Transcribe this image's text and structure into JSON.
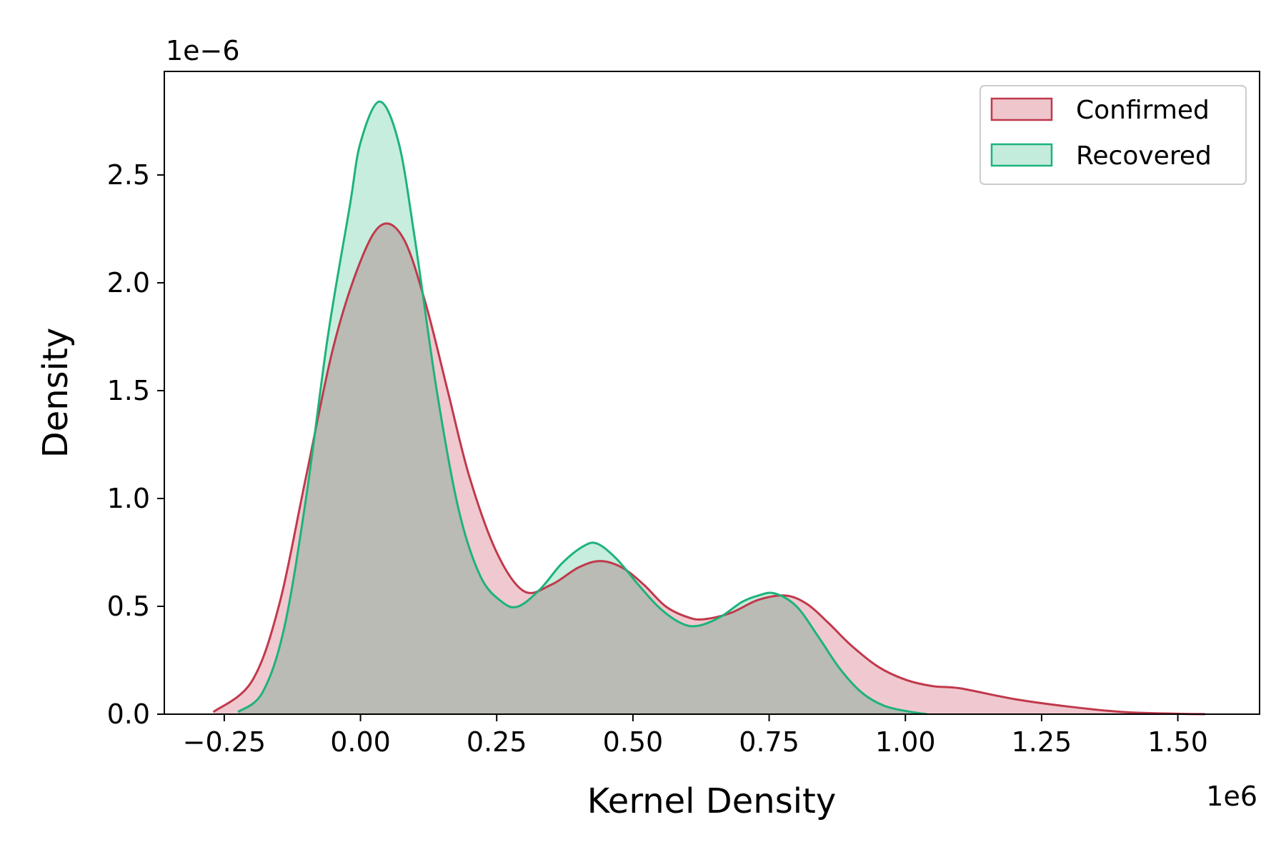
{
  "chart_data": {
    "type": "area",
    "xlabel": "Kernel Density",
    "ylabel": "Density",
    "x_offset_label": "1e6",
    "y_offset_label": "1e−6",
    "xlim": [
      -0.36,
      1.65
    ],
    "ylim": [
      0,
      2.98
    ],
    "x_ticks": [
      -0.25,
      0.0,
      0.25,
      0.5,
      0.75,
      1.0,
      1.25,
      1.5
    ],
    "x_tick_labels": [
      "−0.25",
      "0.00",
      "0.25",
      "0.50",
      "0.75",
      "1.00",
      "1.25",
      "1.50"
    ],
    "y_ticks": [
      0.0,
      0.5,
      1.0,
      1.5,
      2.0,
      2.5
    ],
    "y_tick_labels": [
      "0.0",
      "0.5",
      "1.0",
      "1.5",
      "2.0",
      "2.5"
    ],
    "grid": false,
    "legend": "top-right",
    "series": [
      {
        "name": "Confirmed",
        "color": "#c0394b",
        "fill": "#eec6cc",
        "x": [
          -0.27,
          -0.2,
          -0.15,
          -0.1,
          -0.05,
          0.0,
          0.04,
          0.08,
          0.12,
          0.16,
          0.2,
          0.25,
          0.3,
          0.35,
          0.4,
          0.44,
          0.48,
          0.52,
          0.56,
          0.6,
          0.63,
          0.68,
          0.73,
          0.78,
          0.82,
          0.86,
          0.9,
          0.95,
          1.0,
          1.05,
          1.1,
          1.2,
          1.3,
          1.4,
          1.5,
          1.55
        ],
        "y": [
          0.01,
          0.15,
          0.5,
          1.1,
          1.7,
          2.1,
          2.27,
          2.2,
          1.9,
          1.5,
          1.1,
          0.75,
          0.57,
          0.6,
          0.68,
          0.71,
          0.68,
          0.6,
          0.5,
          0.45,
          0.44,
          0.47,
          0.53,
          0.55,
          0.51,
          0.42,
          0.32,
          0.22,
          0.16,
          0.13,
          0.12,
          0.07,
          0.035,
          0.01,
          0.002,
          0.0
        ]
      },
      {
        "name": "Recovered",
        "color": "#1db37a",
        "fill": "#c3ecdc",
        "x": [
          -0.225,
          -0.18,
          -0.14,
          -0.1,
          -0.06,
          -0.02,
          0.0,
          0.035,
          0.07,
          0.1,
          0.14,
          0.18,
          0.22,
          0.26,
          0.29,
          0.33,
          0.37,
          0.41,
          0.435,
          0.47,
          0.51,
          0.55,
          0.59,
          0.62,
          0.66,
          0.7,
          0.73,
          0.76,
          0.8,
          0.84,
          0.88,
          0.92,
          0.96,
          1.0,
          1.04
        ],
        "y": [
          0.01,
          0.1,
          0.4,
          1.0,
          1.75,
          2.35,
          2.65,
          2.84,
          2.65,
          2.2,
          1.5,
          0.95,
          0.64,
          0.52,
          0.5,
          0.58,
          0.7,
          0.78,
          0.79,
          0.72,
          0.6,
          0.49,
          0.42,
          0.41,
          0.45,
          0.52,
          0.55,
          0.56,
          0.5,
          0.36,
          0.21,
          0.1,
          0.04,
          0.015,
          0.0
        ]
      }
    ]
  }
}
